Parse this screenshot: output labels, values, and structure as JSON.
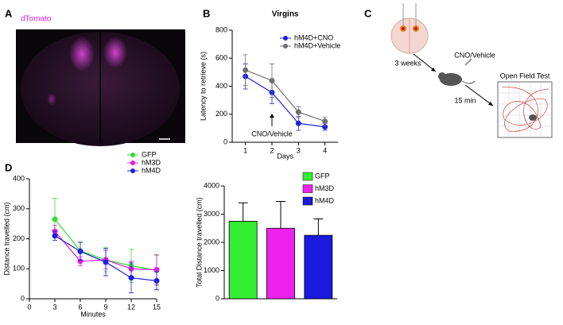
{
  "panel_labels": [
    "A",
    "B",
    "C",
    "D"
  ],
  "image_a": {
    "label": "dTomato"
  },
  "diagram_c": {
    "step1": "3 weeks",
    "injection": "CNO/Vehicle",
    "step2": "15 min",
    "test": "Open Field Test"
  },
  "chart_data": [
    {
      "type": "line",
      "title": "Virgins",
      "x_label": "Days",
      "y_label": "Latency to retrieve (s)",
      "x": [
        1,
        2,
        3,
        4
      ],
      "xlim": [
        0.5,
        4.5
      ],
      "xticks": [
        1,
        2,
        3,
        4
      ],
      "ylim": [
        0,
        800
      ],
      "yticks": [
        0,
        200,
        400,
        600,
        800
      ],
      "legend": "upper right",
      "annotation": "CNO/Vehicle",
      "series": [
        {
          "name": "hM4D+CNO",
          "color": "#2020e0",
          "values": [
            470,
            355,
            135,
            110
          ],
          "errors": [
            90,
            80,
            50,
            25
          ]
        },
        {
          "name": "hM4D+Vehicle",
          "color": "#707070",
          "values": [
            515,
            440,
            215,
            150
          ],
          "errors": [
            110,
            120,
            40,
            30
          ]
        }
      ]
    },
    {
      "type": "line",
      "x_label": "Minutes",
      "y_label": "Distance travelled (cm)",
      "x": [
        3,
        6,
        9,
        12,
        15
      ],
      "xlim": [
        0,
        15
      ],
      "xticks": [
        0,
        3,
        6,
        9,
        12,
        15
      ],
      "ylim": [
        0,
        400
      ],
      "yticks": [
        0,
        100,
        200,
        300,
        400
      ],
      "legend": "upper right",
      "series": [
        {
          "name": "GFP",
          "color": "#33dd33",
          "values": [
            265,
            160,
            130,
            110,
            95
          ],
          "errors": [
            70,
            30,
            40,
            55,
            50
          ]
        },
        {
          "name": "hM3D",
          "color": "#e020e0",
          "values": [
            225,
            125,
            130,
            100,
            97
          ],
          "errors": [
            20,
            15,
            30,
            25,
            50
          ]
        },
        {
          "name": "hM4D",
          "color": "#2020e0",
          "values": [
            210,
            158,
            122,
            70,
            60
          ],
          "errors": [
            15,
            30,
            45,
            50,
            30
          ]
        }
      ]
    },
    {
      "type": "bar",
      "y_label": "Total Distance travelled (cm)",
      "categories": [
        "GFP",
        "hM3D",
        "hM4D"
      ],
      "values": [
        2750,
        2500,
        2250
      ],
      "errors": [
        650,
        950,
        580
      ],
      "colors": [
        "#33ee33",
        "#ee22ee",
        "#1a1ae0"
      ],
      "ylim": [
        0,
        4000
      ],
      "yticks": [
        0,
        1000,
        2000,
        3000,
        4000
      ],
      "legend": "upper right"
    }
  ]
}
